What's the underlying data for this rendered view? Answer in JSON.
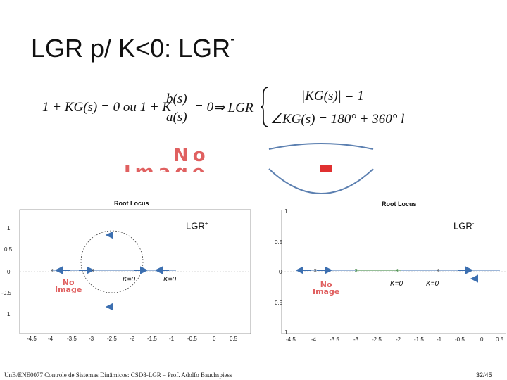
{
  "slide": {
    "title": "LGR p/ K<0: LGR",
    "title_sup": "-",
    "footer": "UnB/ENE0077 Controle de Sistemas Dinâmicos: CSD8-LGR – Prof. Adolfo Bauchspiess",
    "page": "32/45"
  },
  "equation": {
    "lhs": "1 + KG(s) = 0  ou  1 + K",
    "num": "b(s)",
    "den": "a(s)",
    "eq0": "= 0",
    "implies": "⇒ LGR",
    "cond1": "|KG(s)| = 1",
    "cond2": "∠KG(s) = 180° + 360° l"
  },
  "placeholder": {
    "text1": "No",
    "text2": "Image"
  },
  "plots": {
    "left": {
      "title": "Root Locus",
      "label": "LGR",
      "label_sup": "+",
      "k1": "K=0",
      "k2": "K=0",
      "yticks": [
        "1",
        "0.5",
        "0",
        "-0.5",
        "1"
      ],
      "xticks": [
        "-4.5",
        "-4",
        "-3.5",
        "-3",
        "-2.5",
        "-2",
        "-1.5",
        "-1",
        "-0.5",
        "0",
        "0.5"
      ]
    },
    "right": {
      "title": "Root Locus",
      "label": "LGR",
      "label_sup": "-",
      "k1": "K=0",
      "k2": "K=0",
      "yticks": [
        "1",
        "0.5",
        "0",
        "0.5",
        "1"
      ],
      "xticks": [
        "-4.5",
        "-4",
        "-3.5",
        "-3",
        "-2.5",
        "-2",
        "-1.5",
        "-1",
        "-0.5",
        "0",
        "0.5"
      ]
    }
  },
  "colors": {
    "arrow": "#3c6fb0",
    "circle": "#2e7d32",
    "noimage": "#e06060"
  }
}
